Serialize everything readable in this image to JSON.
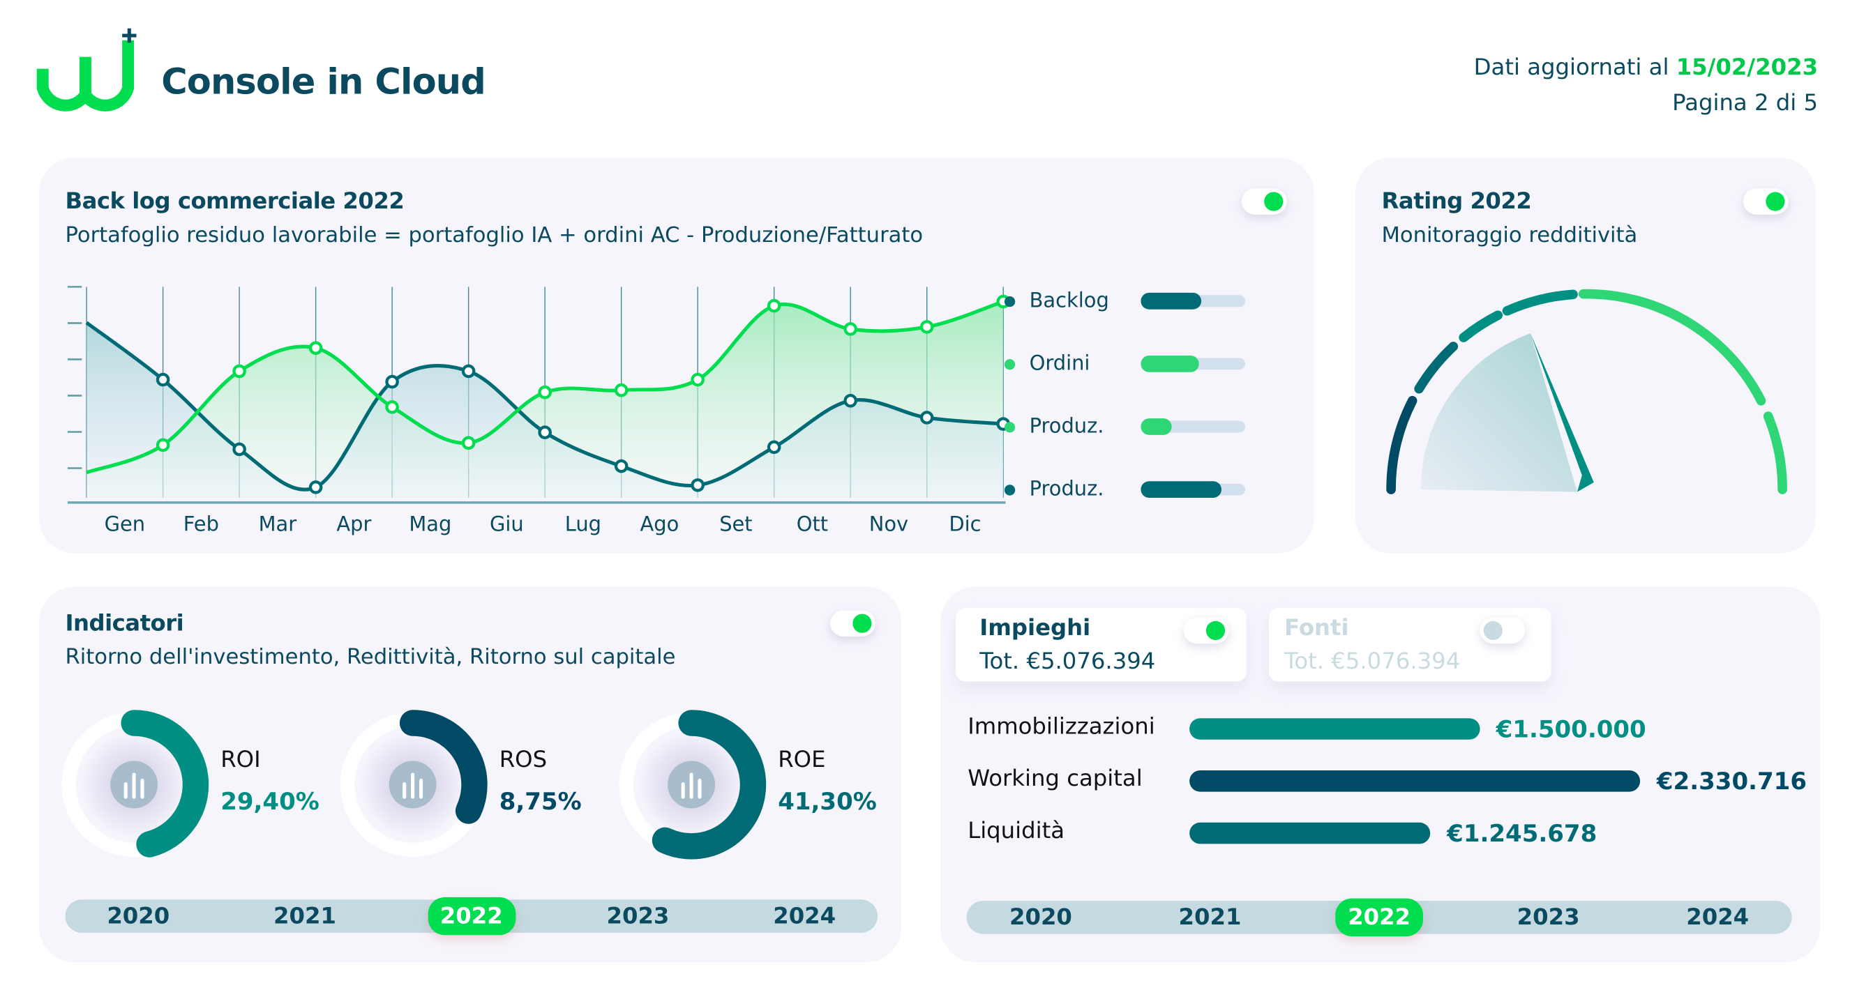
{
  "header": {
    "logo_text": "Console in Cloud",
    "updated_prefix": "Dati aggiornati al",
    "updated_date": "15/02/2023",
    "page": "Pagina 2 di 5"
  },
  "colors": {
    "navy": "#004a66",
    "dark_teal": "#006b75",
    "teal": "#008f82",
    "green": "#00dd4f",
    "light_green": "#2fd676",
    "track": "#d2e0ed"
  },
  "backlog": {
    "title": "Back log commerciale 2022",
    "subtitle": "Portafoglio residuo lavorabile = portafoglio IA + ordini AC - Produzione/Fatturato",
    "toggle_on": true,
    "legend": [
      {
        "label": "Backlog",
        "color": "#006b75",
        "progress": 0.58
      },
      {
        "label": "Ordini",
        "color": "#2fd676",
        "progress": 0.56
      },
      {
        "label": "Produz.",
        "color": "#2fd676",
        "progress": 0.29
      },
      {
        "label": "Produz.",
        "color": "#006b75",
        "progress": 0.77
      }
    ]
  },
  "chart_data": {
    "type": "area",
    "title": "Back log commerciale 2022",
    "categories": [
      "Gen",
      "Feb",
      "Mar",
      "Apr",
      "Mag",
      "Giu",
      "Lug",
      "Ago",
      "Set",
      "Ott",
      "Nov",
      "Dic"
    ],
    "ylim": [
      0,
      100
    ],
    "grid": "vertical",
    "series": [
      {
        "name": "Backlog",
        "color": "#006b75",
        "start": 83,
        "values": [
          56,
          23,
          5,
          55,
          60,
          31,
          15,
          6,
          24,
          46,
          38,
          35
        ]
      },
      {
        "name": "Ordini",
        "color": "#00dd4f",
        "start": 12,
        "values": [
          25,
          60,
          71,
          43,
          26,
          50,
          51,
          56,
          91,
          80,
          81,
          93
        ]
      }
    ]
  },
  "rating": {
    "title": "Rating 2022",
    "subtitle": "Monitoraggio redditività",
    "toggle_on": true,
    "gauge_value": 0.39
  },
  "indicators": {
    "title": "Indicatori",
    "subtitle": "Ritorno dell'investimento, Redittività, Ritorno sul capitale",
    "toggle_on": true,
    "kpis": [
      {
        "name": "ROI",
        "value": "29,40%",
        "color": "#008f82",
        "arc_fraction": 0.46
      },
      {
        "name": "ROS",
        "value": "8,75%",
        "color": "#004a66",
        "arc_fraction": 0.32
      },
      {
        "name": "ROE",
        "value": "41,30%",
        "color": "#006b75",
        "arc_fraction": 0.57
      }
    ],
    "years": [
      "2020",
      "2021",
      "2022",
      "2023",
      "2024"
    ],
    "selected_year": "2022"
  },
  "balance": {
    "tabs": [
      {
        "title": "Impieghi",
        "total": "Tot. €5.076.394",
        "active": true
      },
      {
        "title": "Fonti",
        "total": "Tot. €5.076.394",
        "active": false
      }
    ],
    "bars": [
      {
        "label": "Immobilizzazioni",
        "value": 1500000,
        "display": "€1.500.000",
        "color": "#008f82"
      },
      {
        "label": "Working capital",
        "value": 2330716,
        "display": "€2.330.716",
        "color": "#004a66"
      },
      {
        "label": "Liquidità",
        "value": 1245678,
        "display": "€1.245.678",
        "color": "#006b75"
      }
    ],
    "years": [
      "2020",
      "2021",
      "2022",
      "2023",
      "2024"
    ],
    "selected_year": "2022"
  }
}
